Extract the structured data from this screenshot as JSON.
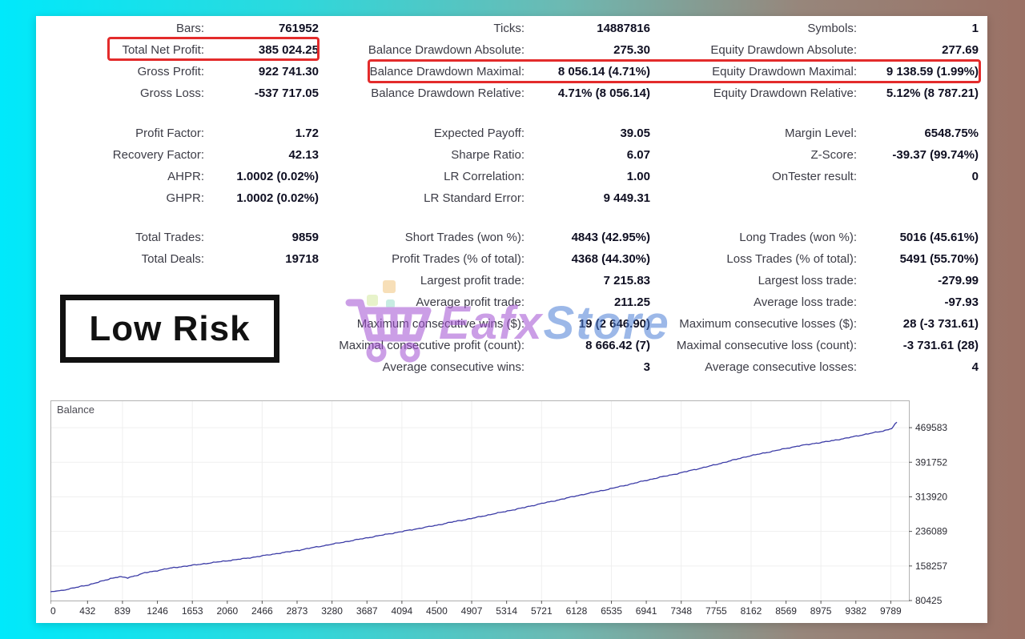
{
  "report": {
    "block1": [
      [
        "Bars:",
        "761952",
        "Ticks:",
        "14887816",
        "Symbols:",
        "1"
      ],
      [
        "Total Net Profit:",
        "385 024.25",
        "Balance Drawdown Absolute:",
        "275.30",
        "Equity Drawdown Absolute:",
        "277.69"
      ],
      [
        "Gross Profit:",
        "922 741.30",
        "Balance Drawdown Maximal:",
        "8 056.14 (4.71%)",
        "Equity Drawdown Maximal:",
        "9 138.59 (1.99%)"
      ],
      [
        "Gross Loss:",
        "-537 717.05",
        "Balance Drawdown Relative:",
        "4.71% (8 056.14)",
        "Equity Drawdown Relative:",
        "5.12% (8 787.21)"
      ]
    ],
    "block2": [
      [
        "Profit Factor:",
        "1.72",
        "Expected Payoff:",
        "39.05",
        "Margin Level:",
        "6548.75%"
      ],
      [
        "Recovery Factor:",
        "42.13",
        "Sharpe Ratio:",
        "6.07",
        "Z-Score:",
        "-39.37 (99.74%)"
      ],
      [
        "AHPR:",
        "1.0002 (0.02%)",
        "LR Correlation:",
        "1.00",
        "OnTester result:",
        "0"
      ],
      [
        "GHPR:",
        "1.0002 (0.02%)",
        "LR Standard Error:",
        "9 449.31",
        "",
        ""
      ]
    ],
    "block3": [
      [
        "Total Trades:",
        "9859",
        "Short Trades (won %):",
        "4843 (42.95%)",
        "Long Trades (won %):",
        "5016 (45.61%)"
      ],
      [
        "Total Deals:",
        "19718",
        "Profit Trades (% of total):",
        "4368 (44.30%)",
        "Loss Trades (% of total):",
        "5491 (55.70%)"
      ],
      [
        "",
        "",
        "Largest profit trade:",
        "7 215.83",
        "Largest loss trade:",
        "-279.99"
      ],
      [
        "",
        "",
        "Average profit trade:",
        "211.25",
        "Average loss trade:",
        "-97.93"
      ],
      [
        "",
        "",
        "Maximum consecutive wins ($):",
        "19 (2 646.90)",
        "Maximum consecutive losses ($):",
        "28 (-3 731.61)"
      ],
      [
        "",
        "",
        "Maximal consecutive profit (count):",
        "8 666.42 (7)",
        "Maximal consecutive loss (count):",
        "-3 731.61 (28)"
      ],
      [
        "",
        "",
        "Average consecutive wins:",
        "3",
        "Average consecutive losses:",
        "4"
      ]
    ]
  },
  "badge": {
    "label": "Low Risk"
  },
  "watermark": {
    "brand_first": "Eafx",
    "brand_second": "Store"
  },
  "colors": {
    "highlight_red": "#e32b2b",
    "balance_line": "#3b3ba6",
    "watermark_purple": "#a24fd2",
    "watermark_blue": "#4d7fd6"
  },
  "chart_data": {
    "type": "line",
    "title": "Balance",
    "legend_position": "top-left-inside",
    "grid": "faint",
    "xlabel": "",
    "ylabel": "",
    "x_ticks": [
      0,
      432,
      839,
      1246,
      1653,
      2060,
      2466,
      2873,
      3280,
      3687,
      4094,
      4500,
      4907,
      5314,
      5721,
      6128,
      6535,
      6941,
      7348,
      7755,
      8162,
      8569,
      8975,
      9382,
      9789
    ],
    "y_ticks": [
      80425,
      158257,
      236089,
      313920,
      391752,
      469583
    ],
    "x_max": 10000,
    "ylim": [
      80425,
      531000
    ],
    "series": [
      {
        "name": "Balance",
        "color": "#3b3ba6",
        "points": [
          [
            0,
            100000
          ],
          [
            150,
            104000
          ],
          [
            300,
            110000
          ],
          [
            450,
            116000
          ],
          [
            600,
            124000
          ],
          [
            700,
            130000
          ],
          [
            800,
            134000
          ],
          [
            900,
            131500
          ],
          [
            1000,
            137000
          ],
          [
            1100,
            143000
          ],
          [
            1200,
            146000
          ],
          [
            1350,
            152000
          ],
          [
            1500,
            156000
          ],
          [
            1700,
            161000
          ],
          [
            1900,
            166000
          ],
          [
            2100,
            171000
          ],
          [
            2300,
            176000
          ],
          [
            2500,
            182000
          ],
          [
            2700,
            188000
          ],
          [
            2900,
            194000
          ],
          [
            3100,
            201000
          ],
          [
            3300,
            208000
          ],
          [
            3500,
            215000
          ],
          [
            3700,
            222000
          ],
          [
            3900,
            229000
          ],
          [
            4100,
            236000
          ],
          [
            4300,
            243000
          ],
          [
            4500,
            250000
          ],
          [
            4700,
            258000
          ],
          [
            4900,
            265000
          ],
          [
            5100,
            273000
          ],
          [
            5300,
            281000
          ],
          [
            5500,
            289000
          ],
          [
            5700,
            298000
          ],
          [
            5900,
            306000
          ],
          [
            6100,
            315000
          ],
          [
            6300,
            323000
          ],
          [
            6500,
            331000
          ],
          [
            6700,
            340000
          ],
          [
            6900,
            349000
          ],
          [
            7100,
            358000
          ],
          [
            7300,
            366000
          ],
          [
            7500,
            375000
          ],
          [
            7700,
            384000
          ],
          [
            7900,
            394000
          ],
          [
            8100,
            404000
          ],
          [
            8300,
            412000
          ],
          [
            8500,
            420000
          ],
          [
            8700,
            428000
          ],
          [
            8900,
            434000
          ],
          [
            9100,
            440000
          ],
          [
            9300,
            447000
          ],
          [
            9500,
            455000
          ],
          [
            9700,
            462000
          ],
          [
            9800,
            468000
          ],
          [
            9860,
            482000
          ]
        ]
      }
    ]
  }
}
